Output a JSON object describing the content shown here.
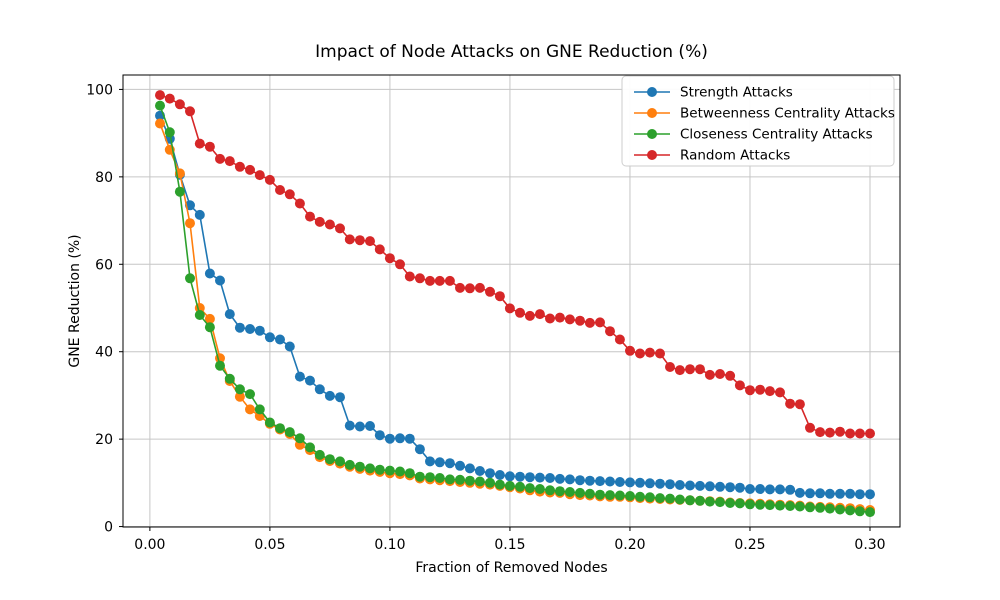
{
  "chart_data": {
    "type": "line",
    "title": "Impact of Node Attacks on GNE Reduction (%)",
    "xlabel": "Fraction of Removed Nodes",
    "ylabel": "GNE Reduction (%)",
    "grid": true,
    "legend_position": "upper right",
    "marker": "circle",
    "xlim": [
      -0.0112,
      0.3125
    ],
    "ylim": [
      -0.1,
      103.3
    ],
    "xticks": [
      {
        "v": 0.0,
        "label": "0.00"
      },
      {
        "v": 0.05,
        "label": "0.05"
      },
      {
        "v": 0.1,
        "label": "0.10"
      },
      {
        "v": 0.15,
        "label": "0.15"
      },
      {
        "v": 0.2,
        "label": "0.20"
      },
      {
        "v": 0.25,
        "label": "0.25"
      },
      {
        "v": 0.3,
        "label": "0.30"
      }
    ],
    "yticks": [
      {
        "v": 0,
        "label": "0"
      },
      {
        "v": 20,
        "label": "20"
      },
      {
        "v": 40,
        "label": "40"
      },
      {
        "v": 60,
        "label": "60"
      },
      {
        "v": 80,
        "label": "80"
      },
      {
        "v": 100,
        "label": "100"
      }
    ],
    "x": [
      0.0042,
      0.0083,
      0.0125,
      0.0167,
      0.0208,
      0.025,
      0.0292,
      0.0333,
      0.0375,
      0.0417,
      0.0458,
      0.05,
      0.0542,
      0.0583,
      0.0625,
      0.0667,
      0.0708,
      0.075,
      0.0792,
      0.0833,
      0.0875,
      0.0917,
      0.0958,
      0.1,
      0.1042,
      0.1083,
      0.1125,
      0.1167,
      0.1208,
      0.125,
      0.1292,
      0.1333,
      0.1375,
      0.1417,
      0.1458,
      0.15,
      0.1542,
      0.1583,
      0.1625,
      0.1667,
      0.1708,
      0.175,
      0.1792,
      0.1833,
      0.1875,
      0.1917,
      0.1958,
      0.2,
      0.2042,
      0.2083,
      0.2125,
      0.2167,
      0.2208,
      0.225,
      0.2292,
      0.2333,
      0.2375,
      0.2417,
      0.2458,
      0.25,
      0.2542,
      0.2583,
      0.2625,
      0.2667,
      0.2708,
      0.275,
      0.2792,
      0.2833,
      0.2875,
      0.2917,
      0.2958,
      0.3
    ],
    "series": [
      {
        "name": "Strength Attacks",
        "color": "#1f77b4",
        "values": [
          94.0,
          88.7,
          80.5,
          73.5,
          71.3,
          57.9,
          56.3,
          48.6,
          45.5,
          45.2,
          44.8,
          43.3,
          42.8,
          41.2,
          34.3,
          33.4,
          31.4,
          29.9,
          29.6,
          23.1,
          22.9,
          23.0,
          20.9,
          20.1,
          20.2,
          20.1,
          17.7,
          14.9,
          14.7,
          14.5,
          13.9,
          13.3,
          12.7,
          12.2,
          11.8,
          11.5,
          11.4,
          11.3,
          11.2,
          11.1,
          10.9,
          10.8,
          10.6,
          10.5,
          10.4,
          10.3,
          10.2,
          10.1,
          10.0,
          9.9,
          9.8,
          9.7,
          9.5,
          9.4,
          9.3,
          9.2,
          9.1,
          9.0,
          8.9,
          8.6,
          8.6,
          8.5,
          8.5,
          8.4,
          7.7,
          7.6,
          7.6,
          7.5,
          7.5,
          7.5,
          7.4,
          7.4
        ]
      },
      {
        "name": "Betweenness Centrality Attacks",
        "color": "#ff7f0e",
        "values": [
          92.2,
          86.2,
          80.8,
          69.4,
          50.0,
          47.5,
          38.5,
          33.3,
          29.7,
          26.8,
          25.3,
          23.5,
          22.2,
          21.2,
          18.7,
          17.5,
          15.9,
          15.0,
          14.4,
          13.7,
          13.2,
          12.8,
          12.5,
          12.2,
          12.0,
          11.7,
          11.0,
          10.8,
          10.6,
          10.4,
          10.2,
          10.0,
          9.8,
          9.6,
          9.3,
          9.0,
          8.7,
          8.3,
          8.0,
          7.8,
          7.7,
          7.4,
          7.2,
          7.1,
          6.9,
          6.8,
          6.8,
          6.7,
          6.5,
          6.4,
          6.3,
          6.2,
          6.1,
          6.0,
          5.9,
          5.8,
          5.7,
          5.5,
          5.4,
          5.3,
          5.2,
          5.1,
          5.0,
          4.9,
          4.8,
          4.6,
          4.5,
          4.4,
          4.3,
          4.2,
          4.0,
          3.8
        ]
      },
      {
        "name": "Closeness Centrality Attacks",
        "color": "#2ca02c",
        "values": [
          96.3,
          90.2,
          76.6,
          56.8,
          48.4,
          45.6,
          36.8,
          33.8,
          31.4,
          30.3,
          26.8,
          23.8,
          22.5,
          21.6,
          20.2,
          18.1,
          16.4,
          15.4,
          14.9,
          14.1,
          13.7,
          13.3,
          13.0,
          12.8,
          12.6,
          12.2,
          11.4,
          11.3,
          11.1,
          10.8,
          10.7,
          10.5,
          10.3,
          10.0,
          9.6,
          9.3,
          9.1,
          8.8,
          8.6,
          8.3,
          8.1,
          7.9,
          7.7,
          7.5,
          7.3,
          7.2,
          7.1,
          7.0,
          6.8,
          6.7,
          6.5,
          6.4,
          6.2,
          6.0,
          5.9,
          5.7,
          5.6,
          5.4,
          5.3,
          5.1,
          5.0,
          4.9,
          4.8,
          4.7,
          4.6,
          4.4,
          4.3,
          4.1,
          3.9,
          3.7,
          3.5,
          3.3
        ]
      },
      {
        "name": "Random Attacks",
        "color": "#d62728",
        "values": [
          98.7,
          97.9,
          96.6,
          95.0,
          87.6,
          86.9,
          84.1,
          83.6,
          82.3,
          81.6,
          80.4,
          79.3,
          77.0,
          76.0,
          73.9,
          70.9,
          69.7,
          69.1,
          68.2,
          65.7,
          65.5,
          65.3,
          63.4,
          61.4,
          60.0,
          57.2,
          56.8,
          56.2,
          56.2,
          56.2,
          54.6,
          54.5,
          54.6,
          53.7,
          52.7,
          49.9,
          48.9,
          48.2,
          48.6,
          47.6,
          47.8,
          47.4,
          47.1,
          46.6,
          46.7,
          44.7,
          42.8,
          40.2,
          39.6,
          39.8,
          39.6,
          36.5,
          35.8,
          36.0,
          36.0,
          34.7,
          34.9,
          34.5,
          32.3,
          31.2,
          31.3,
          31.0,
          30.7,
          28.1,
          28.0,
          22.6,
          21.6,
          21.5,
          21.7,
          21.3,
          21.3,
          21.3
        ]
      }
    ],
    "colors": {
      "grid": "#c6c6c6",
      "spine": "#000000",
      "legend_border": "#cccccc",
      "legend_bg": "#ffffff"
    }
  }
}
